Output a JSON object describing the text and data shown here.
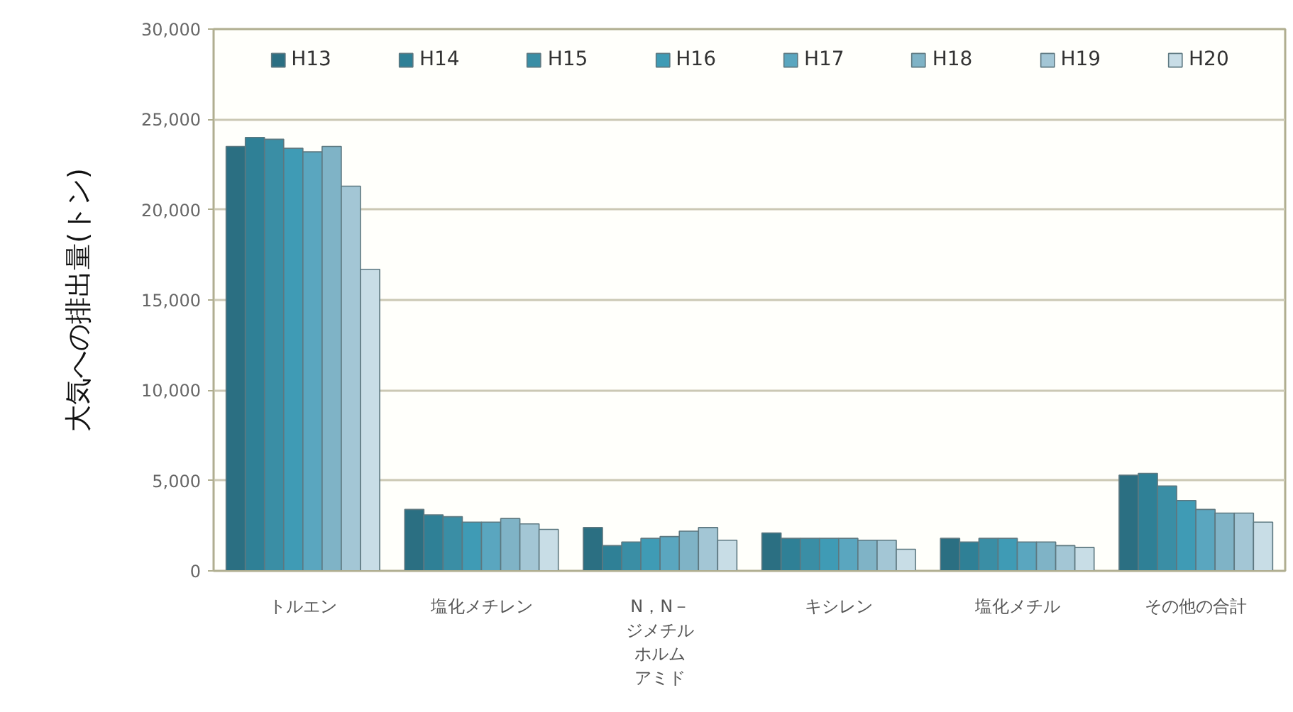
{
  "chart_data": {
    "type": "bar",
    "ylabel": "大気への排出量(トン)",
    "categories": [
      "トルエン",
      "塩化メチレン",
      "N，N－ジメチルホルムアミド",
      "キシレン",
      "塩化メチル",
      "その他の合計"
    ],
    "series": [
      {
        "name": "H13",
        "color": "#2b6f82",
        "values": [
          23500,
          3400,
          2400,
          2100,
          1800,
          5300
        ]
      },
      {
        "name": "H14",
        "color": "#2f8096",
        "values": [
          24000,
          3100,
          1400,
          1800,
          1600,
          5400
        ]
      },
      {
        "name": "H15",
        "color": "#3a8ea5",
        "values": [
          23900,
          3000,
          1600,
          1800,
          1800,
          4700
        ]
      },
      {
        "name": "H16",
        "color": "#3f9bb5",
        "values": [
          23400,
          2700,
          1800,
          1800,
          1800,
          3900
        ]
      },
      {
        "name": "H17",
        "color": "#5aa6bf",
        "values": [
          23200,
          2700,
          1900,
          1800,
          1600,
          3400
        ]
      },
      {
        "name": "H18",
        "color": "#7fb3c6",
        "values": [
          23500,
          2900,
          2200,
          1700,
          1600,
          3200
        ]
      },
      {
        "name": "H19",
        "color": "#a3c6d5",
        "values": [
          21300,
          2600,
          2400,
          1700,
          1400,
          3200
        ]
      },
      {
        "name": "H20",
        "color": "#c8dde6",
        "values": [
          16700,
          2300,
          1700,
          1200,
          1300,
          2700
        ]
      }
    ],
    "ylim": [
      0,
      30000
    ],
    "yticks": [
      0,
      {
        "value": 5000,
        "label": "5,000"
      },
      {
        "value": 10000,
        "label": "10,000"
      },
      {
        "value": 15000,
        "label": "15,000"
      },
      {
        "value": 20000,
        "label": "20,000"
      },
      {
        "value": 25000,
        "label": "25,000"
      },
      {
        "value": 30000,
        "label": "30,000"
      }
    ],
    "grid": "y",
    "legend": "top"
  }
}
